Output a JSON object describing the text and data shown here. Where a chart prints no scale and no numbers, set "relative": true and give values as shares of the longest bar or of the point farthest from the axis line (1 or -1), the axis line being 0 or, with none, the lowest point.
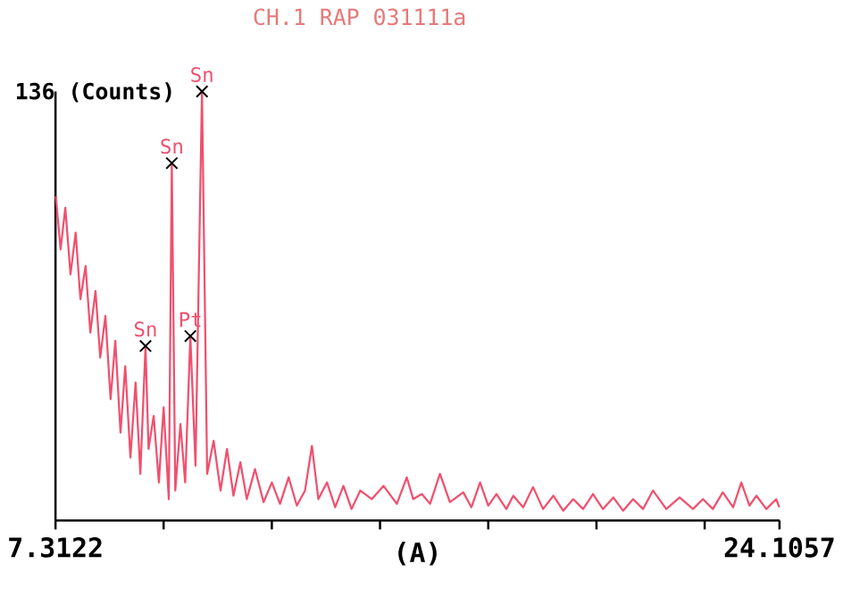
{
  "chart_data": {
    "type": "line",
    "title": "CH.1 RAP 031111a",
    "xlabel": "(A)",
    "ylabel": "136 (Counts)",
    "relative": true,
    "xlim": [
      7.3122,
      24.1057
    ],
    "xticks": [
      7.3122,
      {
        "value": 9.82,
        "label": null
      },
      {
        "value": 12.33,
        "label": null
      },
      {
        "value": 14.84,
        "label": null
      },
      {
        "value": 17.35,
        "label": null
      },
      {
        "value": 19.86,
        "label": null
      },
      {
        "value": 22.37,
        "label": null
      },
      24.1057
    ],
    "series": [
      {
        "color": "#f0506e",
        "x": [
          7.32,
          7.43,
          7.54,
          7.66,
          7.78,
          7.89,
          8.01,
          8.12,
          8.24,
          8.35,
          8.47,
          8.59,
          8.7,
          8.82,
          8.93,
          9.05,
          9.17,
          9.28,
          9.4,
          9.47,
          9.59,
          9.71,
          9.82,
          9.94,
          10.01,
          10.09,
          10.21,
          10.32,
          10.44,
          10.56,
          10.71,
          10.83,
          10.98,
          11.14,
          11.29,
          11.44,
          11.6,
          11.75,
          11.94,
          12.14,
          12.33,
          12.52,
          12.72,
          12.91,
          13.1,
          13.26,
          13.41,
          13.61,
          13.8,
          13.99,
          14.18,
          14.38,
          14.65,
          14.92,
          15.23,
          15.46,
          15.61,
          15.81,
          16.0,
          16.23,
          16.46,
          16.77,
          16.96,
          17.16,
          17.35,
          17.54,
          17.77,
          17.93,
          18.16,
          18.39,
          18.62,
          18.86,
          19.09,
          19.32,
          19.55,
          19.78,
          20.01,
          20.25,
          20.48,
          20.71,
          20.94,
          21.17,
          21.48,
          21.79,
          22.1,
          22.33,
          22.56,
          22.79,
          23.03,
          23.22,
          23.41,
          23.57,
          23.8,
          24.03,
          24.1
        ],
        "values": [
          0.756,
          0.632,
          0.729,
          0.574,
          0.671,
          0.516,
          0.593,
          0.438,
          0.535,
          0.38,
          0.477,
          0.283,
          0.419,
          0.205,
          0.36,
          0.147,
          0.322,
          0.109,
          0.407,
          0.167,
          0.244,
          0.089,
          0.264,
          0.05,
          0.833,
          0.07,
          0.225,
          0.089,
          0.43,
          0.128,
          1,
          0.109,
          0.186,
          0.07,
          0.167,
          0.058,
          0.136,
          0.05,
          0.12,
          0.043,
          0.089,
          0.039,
          0.101,
          0.035,
          0.07,
          0.174,
          0.05,
          0.089,
          0.031,
          0.081,
          0.027,
          0.07,
          0.05,
          0.081,
          0.039,
          0.101,
          0.05,
          0.062,
          0.039,
          0.109,
          0.043,
          0.066,
          0.031,
          0.089,
          0.035,
          0.062,
          0.027,
          0.058,
          0.031,
          0.078,
          0.027,
          0.058,
          0.023,
          0.05,
          0.027,
          0.062,
          0.027,
          0.054,
          0.023,
          0.05,
          0.027,
          0.07,
          0.027,
          0.054,
          0.027,
          0.05,
          0.027,
          0.066,
          0.031,
          0.089,
          0.035,
          0.058,
          0.027,
          0.05,
          0.031
        ]
      }
    ],
    "annotations": [
      {
        "text": "Sn",
        "x": 10.71,
        "y": 1
      },
      {
        "text": "Sn",
        "x": 10.01,
        "y": 0.833
      },
      {
        "text": "Sn",
        "x": 9.4,
        "y": 0.407
      },
      {
        "text": "Pt",
        "x": 10.44,
        "y": 0.43
      }
    ]
  }
}
